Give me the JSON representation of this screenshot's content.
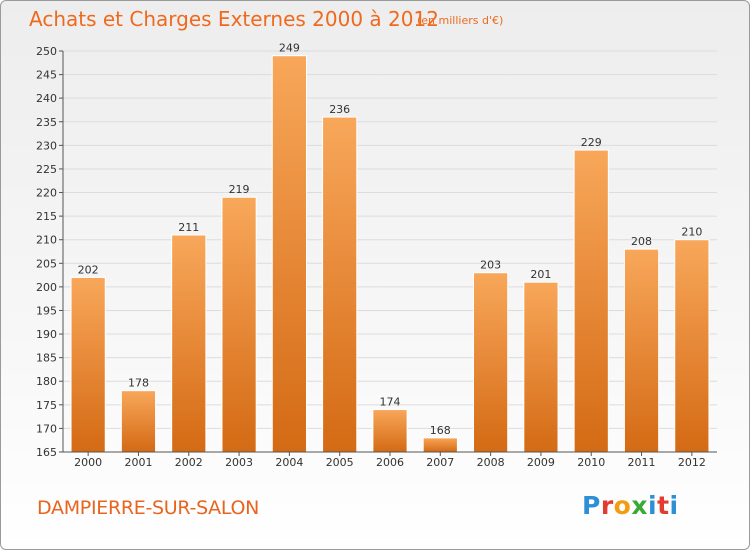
{
  "header": {
    "title": "Achats et Charges Externes 2000 à 2012",
    "subtitle": "(en milliers d'€)"
  },
  "footer": {
    "commune": "DAMPIERRE-SUR-SALON",
    "logo": [
      "P",
      "r",
      "o",
      "x",
      "i",
      "t",
      "i"
    ]
  },
  "chart_data": {
    "type": "bar",
    "title": "Achats et Charges Externes 2000 à 2012",
    "subtitle": "(en milliers d'€)",
    "xlabel": "",
    "ylabel": "",
    "categories": [
      "2000",
      "2001",
      "2002",
      "2003",
      "2004",
      "2005",
      "2006",
      "2007",
      "2008",
      "2009",
      "2010",
      "2011",
      "2012"
    ],
    "values": [
      202,
      178,
      211,
      219,
      249,
      236,
      174,
      168,
      203,
      201,
      229,
      208,
      210
    ],
    "ylim": [
      165,
      250
    ],
    "yticks": [
      165,
      170,
      175,
      180,
      185,
      190,
      195,
      200,
      205,
      210,
      215,
      220,
      225,
      230,
      235,
      240,
      245,
      250
    ],
    "grid": true,
    "colors": {
      "bar_top": "#f8a75a",
      "bar_bottom": "#d46a14",
      "grid": "#dcdcdc"
    }
  }
}
